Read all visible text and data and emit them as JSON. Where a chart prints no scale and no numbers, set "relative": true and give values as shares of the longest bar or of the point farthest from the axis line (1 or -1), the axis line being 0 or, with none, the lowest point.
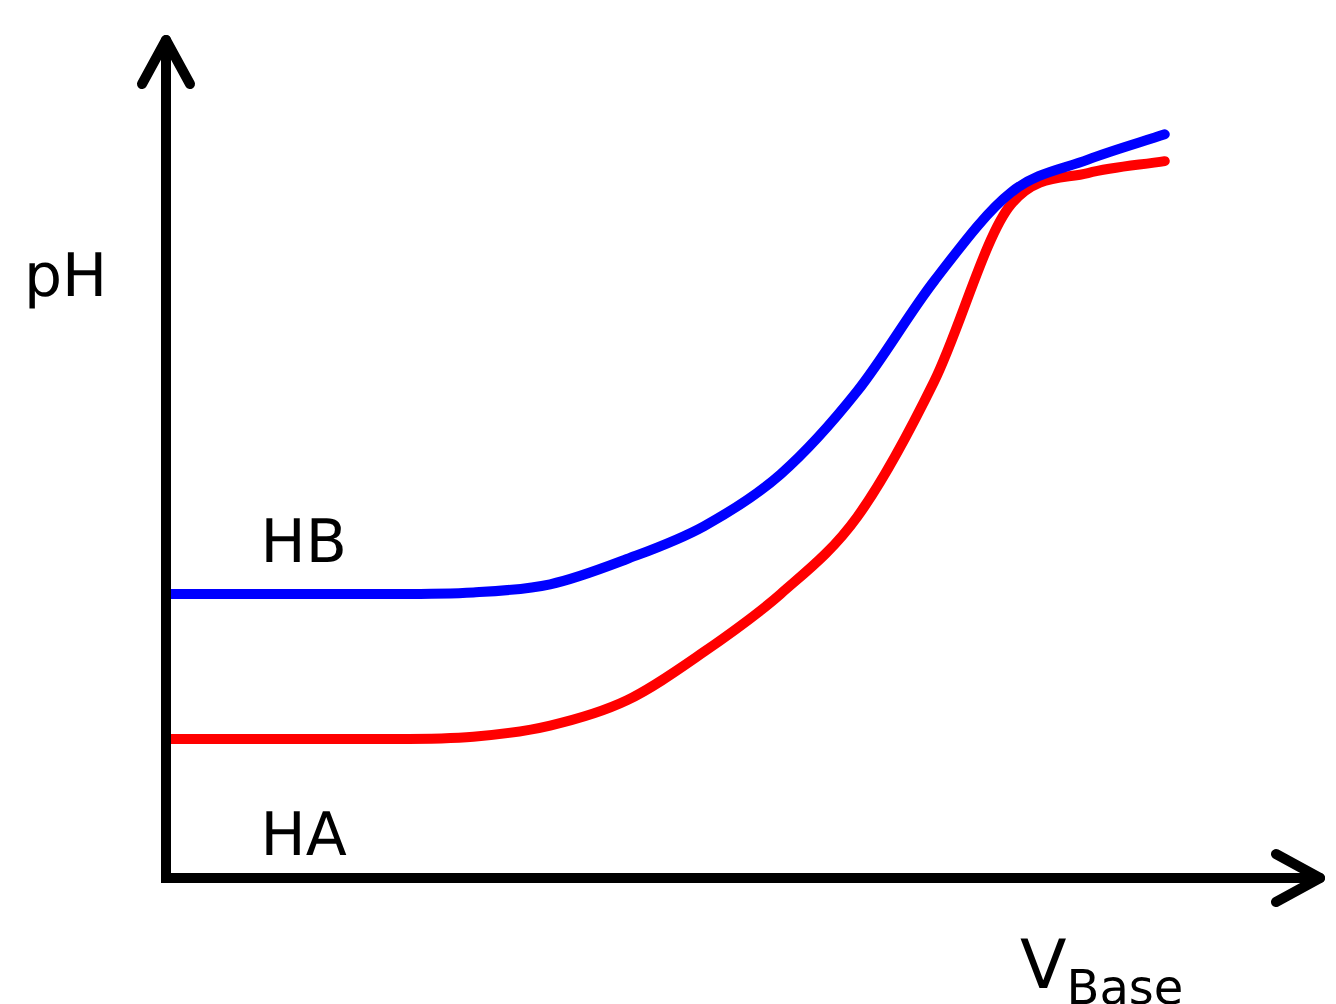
{
  "chart_data": {
    "type": "line",
    "relative": true,
    "xlabel": "V$_{Base}$",
    "ylabel": "pH",
    "categories": [
      null,
      null,
      null,
      null,
      null,
      null,
      null,
      null,
      null,
      null,
      null,
      null,
      null,
      null
    ],
    "series": [
      {
        "name": "HB",
        "color": "#0000ff",
        "values": [
          0.382,
          0.382,
          0.382,
          0.382,
          0.384,
          0.395,
          0.429,
          0.473,
          0.543,
          0.655,
          0.803,
          0.922,
          0.966,
          1
        ]
      },
      {
        "name": "HA",
        "color": "#ff0000",
        "values": [
          0.187,
          0.187,
          0.187,
          0.187,
          0.19,
          0.205,
          0.239,
          0.304,
          0.382,
          0.486,
          0.668,
          0.906,
          0.948,
          0.964
        ]
      }
    ],
    "legend": false,
    "marker": "none",
    "line_style": "solid"
  }
}
